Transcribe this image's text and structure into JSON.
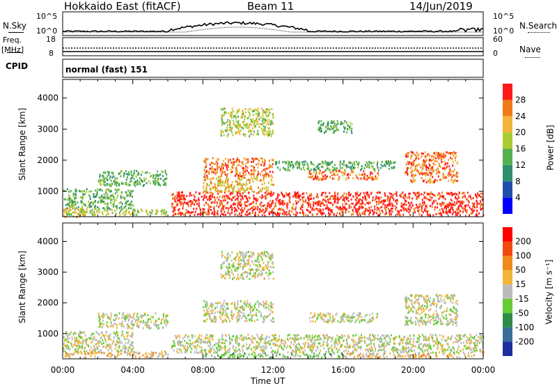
{
  "header": {
    "station": "Hokkaido East (fitACF)",
    "beam": "Beam 11",
    "date": "14/Jun/2019"
  },
  "noise_panel": {
    "left_label": "N.Sky",
    "right_label": "N.Search",
    "left_ticks": [
      "10^5",
      "10^0"
    ],
    "right_ticks": [
      "10^5",
      "10^0"
    ]
  },
  "freq_panel": {
    "left_label": "Freq.",
    "left_unit": "[MHz]",
    "left_ticks": [
      "18",
      "8"
    ],
    "right_label": "Nave",
    "right_ticks": [
      "60",
      "0"
    ]
  },
  "cpid_panel": {
    "label": "CPID",
    "value": "normal (fast) 151"
  },
  "chart_data": [
    {
      "type": "heatmap",
      "quantity": "Power",
      "ylabel": "Slant Range [km]",
      "yticks": [
        1000,
        2000,
        3000,
        4000
      ],
      "ylim": [
        180,
        4600
      ],
      "colorbar_label": "Power [dB]",
      "colorbar_ticks": [
        "4",
        "8",
        "12",
        "16",
        "20",
        "24",
        "28"
      ],
      "colorbar_colors": [
        "#0000ff",
        "#1f4faa",
        "#2f8f6f",
        "#55b050",
        "#aacc33",
        "#f2b43a",
        "#f07a1a",
        "#ff1a1a"
      ],
      "regions": [
        {
          "t": [
            0.0,
            1.2
          ],
          "r": [
            200,
            500
          ],
          "level": 5
        },
        {
          "t": [
            0.0,
            6.0
          ],
          "r": [
            250,
            450
          ],
          "level": 4
        },
        {
          "t": [
            0.0,
            4.0
          ],
          "r": [
            450,
            1100
          ],
          "level": 3
        },
        {
          "t": [
            2.0,
            6.0
          ],
          "r": [
            1200,
            1700
          ],
          "level": 3
        },
        {
          "t": [
            6.2,
            24.0
          ],
          "r": [
            250,
            1000
          ],
          "level": 7
        },
        {
          "t": [
            8.0,
            12.0
          ],
          "r": [
            1000,
            1500
          ],
          "level": 5
        },
        {
          "t": [
            8.0,
            12.0
          ],
          "r": [
            1500,
            2100
          ],
          "level": 6
        },
        {
          "t": [
            9.0,
            12.0
          ],
          "r": [
            2800,
            3700
          ],
          "level": 4
        },
        {
          "t": [
            14.0,
            18.0
          ],
          "r": [
            1400,
            1700
          ],
          "level": 6
        },
        {
          "t": [
            14.5,
            16.5
          ],
          "r": [
            2900,
            3300
          ],
          "level": 3
        },
        {
          "t": [
            19.5,
            22.5
          ],
          "r": [
            1300,
            2300
          ],
          "level": 6
        },
        {
          "t": [
            12.0,
            19.0
          ],
          "r": [
            1700,
            2000
          ],
          "level": 3
        }
      ]
    },
    {
      "type": "heatmap",
      "quantity": "Velocity",
      "ylabel": "Slant Range [km]",
      "xlabel": "Time UT",
      "xticks": [
        "00:00",
        "04:00",
        "08:00",
        "12:00",
        "16:00",
        "20:00",
        "00:00"
      ],
      "xlim": [
        0,
        24
      ],
      "yticks": [
        1000,
        2000,
        3000,
        4000
      ],
      "ylim": [
        180,
        4600
      ],
      "colorbar_label": "Velocity [m s⁻¹]",
      "colorbar_ticks": [
        "200",
        "100",
        "50",
        "15",
        "-15",
        "-50",
        "-100",
        "-200"
      ],
      "colorbar_colors": [
        "#1e2fa0",
        "#3a6f9a",
        "#2f8a4a",
        "#66cc33",
        "#bbbbbb",
        "#f2b43a",
        "#f08a1a",
        "#f04a10",
        "#ff0000"
      ],
      "regions": [
        {
          "t": [
            0.0,
            6.0
          ],
          "r": [
            250,
            450
          ],
          "level": 5
        },
        {
          "t": [
            0.0,
            4.0
          ],
          "r": [
            450,
            1100
          ],
          "level": 4
        },
        {
          "t": [
            2.0,
            6.0
          ],
          "r": [
            1200,
            1700
          ],
          "level": 4
        },
        {
          "t": [
            6.2,
            24.0
          ],
          "r": [
            400,
            1000
          ],
          "level": 4
        },
        {
          "t": [
            8.0,
            16.0
          ],
          "r": [
            250,
            400
          ],
          "level": 3
        },
        {
          "t": [
            8.0,
            12.0
          ],
          "r": [
            1400,
            2100
          ],
          "level": 4
        },
        {
          "t": [
            9.0,
            12.0
          ],
          "r": [
            2800,
            3700
          ],
          "level": 4
        },
        {
          "t": [
            14.0,
            18.0
          ],
          "r": [
            1400,
            1700
          ],
          "level": 4
        },
        {
          "t": [
            19.5,
            22.5
          ],
          "r": [
            1300,
            2300
          ],
          "level": 4
        },
        {
          "t": [
            16.0,
            24.0
          ],
          "r": [
            250,
            400
          ],
          "level": 5
        }
      ]
    }
  ]
}
